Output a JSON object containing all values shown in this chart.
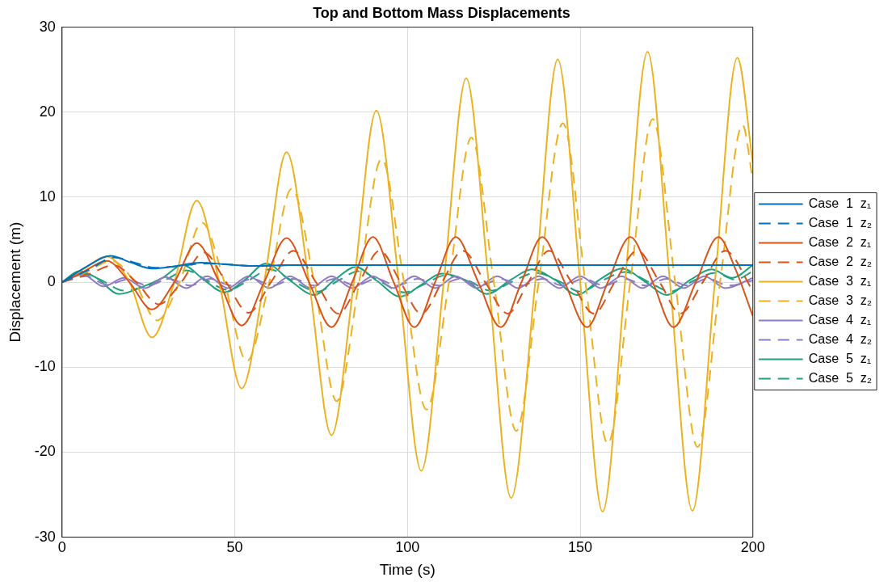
{
  "chart_data": {
    "type": "line",
    "title": "Top and Bottom Mass Displacements",
    "xlabel": "Time (s)",
    "ylabel": "Displacement (m)",
    "xlim": [
      0,
      200
    ],
    "xticks": [
      0,
      50,
      100,
      150,
      200
    ],
    "ylim": [
      -30,
      30
    ],
    "yticks": [
      -30,
      -20,
      -10,
      0,
      10,
      20,
      30
    ],
    "grid": true,
    "legend": "right",
    "marker": "none",
    "series": [
      {
        "name": "Case  1  z₁",
        "color": "#0072bd",
        "line_style": "solid",
        "x": [
          0,
          7,
          14,
          20,
          26,
          33,
          40,
          47,
          55,
          65,
          80,
          100,
          200
        ],
        "values": [
          0,
          1.8,
          3.1,
          2.3,
          1.6,
          1.9,
          2.3,
          2.1,
          1.9,
          2.0,
          2.0,
          2.0,
          2.0
        ]
      },
      {
        "name": "Case  1  z₂",
        "color": "#0072bd",
        "line_style": "dashed",
        "x": [
          0,
          8,
          15,
          21,
          27,
          34,
          41,
          48,
          56,
          66,
          80,
          100,
          200
        ],
        "values": [
          0,
          1.5,
          2.9,
          2.3,
          1.7,
          1.9,
          2.2,
          2.1,
          1.9,
          2.0,
          2.0,
          2.0,
          2.0
        ]
      },
      {
        "name": "Case  2  z₁",
        "color": "#d95319",
        "line_style": "solid",
        "x": [
          0,
          6,
          13,
          19.5,
          26,
          32.5,
          39,
          45.5,
          52,
          58.5,
          65,
          71.5,
          78,
          84,
          90,
          96,
          102,
          108,
          114,
          120.5,
          127,
          133,
          139,
          145.5,
          152,
          158,
          164.5,
          171,
          177,
          183.5,
          190,
          195,
          200
        ],
        "values": [
          0,
          1.2,
          2.5,
          0,
          -3.2,
          0,
          4.6,
          0,
          -5.1,
          0,
          5.2,
          0,
          -5.3,
          0,
          5.3,
          0,
          -5.3,
          0,
          5.3,
          0,
          -5.3,
          0,
          5.3,
          0,
          -5.3,
          0,
          5.3,
          0,
          -5.3,
          0,
          5.3,
          1.5,
          -4
        ]
      },
      {
        "name": "Case  2  z₂",
        "color": "#d95319",
        "line_style": "dashed",
        "x": [
          0,
          8,
          15,
          21.5,
          28,
          34.5,
          41,
          47.5,
          54,
          60.5,
          67,
          73.5,
          80,
          86,
          92,
          98,
          104,
          110,
          116,
          122.5,
          129,
          135,
          141,
          147.5,
          154,
          160,
          166.5,
          173,
          179,
          185.5,
          192,
          200
        ],
        "values": [
          0,
          1,
          2,
          0,
          -2.6,
          0,
          3.5,
          0,
          -3.6,
          0,
          3.7,
          0,
          -3.7,
          0,
          3.7,
          0,
          -3.7,
          0,
          3.7,
          0,
          -3.7,
          0,
          3.7,
          0,
          -3.7,
          0,
          3.7,
          0,
          -3.7,
          0,
          3.7,
          -1
        ]
      },
      {
        "name": "Case  3  z₁",
        "color": "#edb120",
        "line_style": "solid",
        "x": [
          0,
          6,
          13,
          19.5,
          26,
          32.5,
          39,
          45.5,
          52,
          58.5,
          65,
          71.5,
          78,
          84.5,
          91,
          97.5,
          104,
          110.5,
          117,
          123.5,
          130,
          137,
          143.5,
          150,
          156.5,
          163,
          169.5,
          176,
          182.5,
          189,
          195.5,
          200
        ],
        "values": [
          0,
          1.5,
          3,
          0,
          -6.5,
          0,
          9.6,
          0,
          -12.5,
          0,
          15.3,
          0,
          -18,
          0,
          20.2,
          0,
          -22.2,
          0,
          24,
          0,
          -25.4,
          0,
          26.2,
          0,
          -27,
          0,
          27.1,
          0,
          -26.9,
          0,
          26.4,
          14
        ]
      },
      {
        "name": "Case  3  z₂",
        "color": "#edb120",
        "line_style": "dashed",
        "x": [
          0,
          7,
          14.5,
          21,
          27.5,
          34,
          40.5,
          47,
          53.5,
          60,
          66.5,
          73,
          79.5,
          86,
          92.5,
          99,
          105.5,
          112,
          118.5,
          125,
          131.5,
          138,
          145,
          151.5,
          158,
          164.5,
          171,
          177.5,
          184,
          190.5,
          197,
          200
        ],
        "values": [
          0,
          1.2,
          2.5,
          0,
          -4.5,
          0,
          7,
          0,
          -9.3,
          0,
          11,
          0,
          -14,
          0,
          14.5,
          0,
          -15,
          0,
          17,
          0,
          -17.5,
          0,
          18.7,
          0,
          -19,
          0,
          19.2,
          0,
          -19.4,
          0,
          18.5,
          12
        ]
      },
      {
        "name": "Case  4  z₁",
        "color": "#8e7cc3",
        "line_style": "solid",
        "x": [
          0,
          6,
          12,
          18,
          24,
          30,
          36,
          42,
          48,
          54,
          60,
          66,
          72,
          78,
          84,
          90,
          96,
          102,
          108,
          114,
          120,
          126,
          132,
          138,
          144,
          150,
          156,
          162,
          168,
          174,
          180,
          186,
          192,
          200
        ],
        "values": [
          0,
          0.9,
          -0.5,
          0.5,
          -0.7,
          0.6,
          -0.7,
          0.7,
          -0.7,
          0.7,
          -0.7,
          0.7,
          -0.7,
          0.7,
          -0.7,
          0.7,
          -0.7,
          0.7,
          -0.7,
          0.7,
          -0.7,
          0.7,
          -0.7,
          0.7,
          -0.7,
          0.7,
          -0.7,
          0.7,
          -0.7,
          0.7,
          -0.7,
          0.7,
          -0.7,
          0.5
        ]
      },
      {
        "name": "Case  4  z₂",
        "color": "#8e7cc3",
        "line_style": "dashed",
        "x": [
          0,
          7,
          13,
          19,
          25,
          31,
          37,
          43,
          49,
          55,
          61,
          67,
          73,
          79,
          85,
          91,
          97,
          103,
          109,
          115,
          121,
          127,
          133,
          139,
          145,
          151,
          157,
          163,
          169,
          175,
          181,
          187,
          193,
          200
        ],
        "values": [
          0,
          0.7,
          -0.3,
          0.3,
          -0.4,
          0.4,
          -0.4,
          0.4,
          -0.4,
          0.4,
          -0.4,
          0.4,
          -0.4,
          0.4,
          -0.4,
          0.4,
          -0.4,
          0.4,
          -0.4,
          0.4,
          -0.4,
          0.4,
          -0.4,
          0.4,
          -0.4,
          0.4,
          -0.4,
          0.4,
          -0.4,
          0.4,
          -0.4,
          0.4,
          -0.4,
          0.2
        ]
      },
      {
        "name": "Case  5  z₁",
        "color": "#20a07e",
        "line_style": "solid",
        "x": [
          0,
          5,
          10,
          16.5,
          23,
          29,
          35,
          41,
          47,
          53,
          59,
          66,
          73,
          79,
          85,
          91,
          98,
          104,
          110,
          117,
          123,
          130,
          136,
          143,
          149,
          156,
          162,
          169,
          175,
          182,
          188,
          194,
          200
        ],
        "values": [
          0,
          1.3,
          0.5,
          -1.4,
          -0.6,
          0.5,
          2.0,
          0.3,
          -1.2,
          0.3,
          2.2,
          0.2,
          -1.5,
          0.3,
          1.8,
          0.2,
          -1.7,
          -0.3,
          1.0,
          0.2,
          -1.4,
          0.3,
          1.5,
          0.2,
          -1.5,
          0.4,
          1.6,
          0,
          -1.5,
          0.3,
          1.5,
          0.5,
          2.0
        ]
      },
      {
        "name": "Case  5  z₂",
        "color": "#20a07e",
        "line_style": "dashed",
        "x": [
          0,
          6,
          11,
          18,
          24,
          30,
          36,
          42,
          48,
          54,
          60,
          67,
          74,
          80,
          86,
          92,
          99,
          105,
          111,
          118,
          124,
          131,
          137,
          144,
          150,
          157,
          163,
          170,
          176,
          183,
          189,
          195,
          200
        ],
        "values": [
          0,
          1.0,
          0.3,
          -1.0,
          -0.5,
          0.3,
          1.4,
          0.2,
          -0.9,
          0.2,
          1.5,
          0.1,
          -1.1,
          0.2,
          1.3,
          0.1,
          -1.2,
          -0.2,
          0.8,
          0.1,
          -1.0,
          0.2,
          1.1,
          0.1,
          -1.1,
          0.3,
          1.2,
          0,
          -1.1,
          0.2,
          1.1,
          0.3,
          1.3
        ]
      }
    ]
  }
}
